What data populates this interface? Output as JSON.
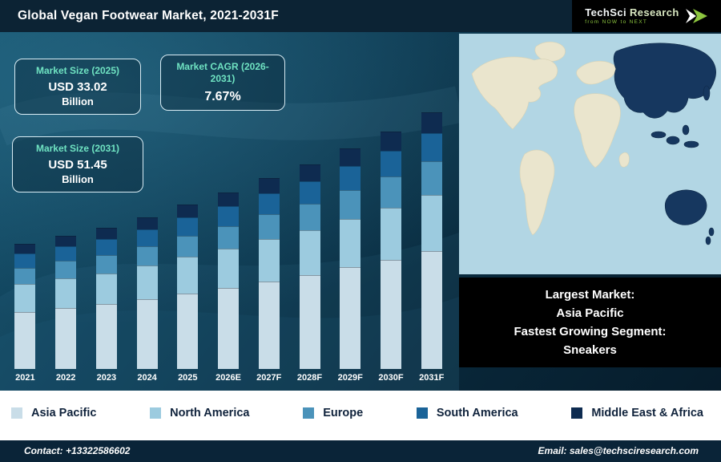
{
  "header": {
    "title": "Global Vegan Footwear Market, 2021-2031F",
    "logo": {
      "primary": "TechSci",
      "secondary": "Research",
      "tagline": "from NOW to NEXT"
    }
  },
  "cards": [
    {
      "title": "Market Size (2025)",
      "value": "USD 33.02",
      "unit": "Billion"
    },
    {
      "title": "Market CAGR (2026-2031)",
      "value": "7.67%"
    },
    {
      "title": "Market Size (2031)",
      "value": "USD 51.45",
      "unit": "Billion"
    }
  ],
  "chart_data": {
    "type": "bar",
    "stacked": true,
    "title": "Global Vegan Footwear Market, 2021-2031F",
    "units": "USD Billion",
    "categories": [
      "2021",
      "2022",
      "2023",
      "2024",
      "2025",
      "2026E",
      "2027F",
      "2028F",
      "2029F",
      "2030F",
      "2031F"
    ],
    "series": [
      {
        "name": "Asia Pacific",
        "color": "#c9dde8",
        "values": [
          11.5,
          12.3,
          13.0,
          14.0,
          15.2,
          16.3,
          17.6,
          18.9,
          20.4,
          21.9,
          23.7
        ]
      },
      {
        "name": "North America",
        "color": "#9ccbdf",
        "values": [
          5.5,
          5.9,
          6.2,
          6.7,
          7.3,
          7.8,
          8.4,
          9.0,
          9.7,
          10.5,
          11.3
        ]
      },
      {
        "name": "Europe",
        "color": "#4b93ba",
        "values": [
          3.3,
          3.5,
          3.7,
          4.0,
          4.3,
          4.6,
          5.0,
          5.3,
          5.8,
          6.2,
          6.7
        ]
      },
      {
        "name": "South America",
        "color": "#1a6398",
        "values": [
          2.8,
          2.9,
          3.1,
          3.3,
          3.6,
          3.9,
          4.2,
          4.5,
          4.9,
          5.2,
          5.7
        ]
      },
      {
        "name": "Middle East & Africa",
        "color": "#0e2b50",
        "values": [
          2.0,
          2.1,
          2.3,
          2.4,
          2.6,
          2.8,
          3.1,
          3.3,
          3.5,
          3.8,
          4.1
        ]
      }
    ],
    "totals": [
      25.0,
      26.8,
      28.2,
      30.4,
      33.02,
      35.5,
      38.2,
      41.1,
      44.3,
      47.7,
      51.45
    ],
    "ylim": [
      0,
      55
    ],
    "grid": false,
    "legend_position": "bottom"
  },
  "annotation": {
    "lines": [
      "Largest Market:",
      "Asia Pacific",
      "Fastest Growing Segment:",
      "Sneakers"
    ]
  },
  "legend": {
    "items": [
      {
        "label": "Asia Pacific",
        "color": "#c9dde8"
      },
      {
        "label": "North America",
        "color": "#9ccbdf"
      },
      {
        "label": "Europe",
        "color": "#4b93ba"
      },
      {
        "label": "South America",
        "color": "#1a6398"
      },
      {
        "label": "Middle East & Africa",
        "color": "#0e2b50"
      }
    ]
  },
  "footer": {
    "contact": "Contact: +13322586602",
    "email": "Email: sales@techsciresearch.com"
  }
}
